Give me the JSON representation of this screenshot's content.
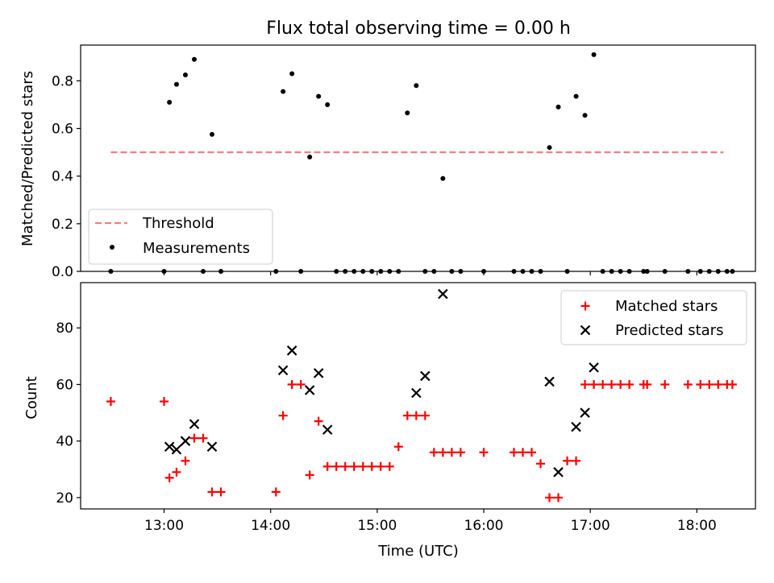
{
  "chart_data": [
    {
      "type": "scatter",
      "title": "Flux total observing time = 0.00 h",
      "xlabel": "",
      "ylabel": "Matched/Predicted stars",
      "ylim": [
        0,
        0.95
      ],
      "y_ticks": [
        "0.0",
        "0.2",
        "0.4",
        "0.6",
        "0.8"
      ],
      "legend_position": "lower-left",
      "threshold": {
        "name": "Threshold",
        "value": 0.5,
        "x_range": [
          "12:30",
          "18:15"
        ],
        "color": "#f08080",
        "style": "dashed"
      },
      "series": [
        {
          "name": "Measurements",
          "color": "#000000",
          "marker": "dot",
          "x": [
            "12:30",
            "13:00",
            "13:03",
            "13:07",
            "13:12",
            "13:17",
            "13:22",
            "13:27",
            "13:32",
            "14:03",
            "14:07",
            "14:12",
            "14:17",
            "14:22",
            "14:27",
            "14:32",
            "14:37",
            "14:42",
            "14:47",
            "14:52",
            "14:57",
            "15:02",
            "15:07",
            "15:12",
            "15:17",
            "15:22",
            "15:27",
            "15:32",
            "15:37",
            "15:42",
            "15:47",
            "16:00",
            "16:17",
            "16:22",
            "16:27",
            "16:32",
            "16:37",
            "16:42",
            "16:47",
            "16:52",
            "16:57",
            "17:02",
            "17:07",
            "17:12",
            "17:17",
            "17:22",
            "17:30",
            "17:32",
            "17:42",
            "17:55",
            "18:02",
            "18:07",
            "18:12",
            "18:17",
            "18:20"
          ],
          "y": [
            0,
            0,
            0.71,
            0.785,
            0.825,
            0.89,
            0,
            0.575,
            0,
            0,
            0.755,
            0.83,
            0,
            0.48,
            0.735,
            0.7,
            0,
            0,
            0,
            0,
            0,
            0,
            0,
            0,
            0.665,
            0.78,
            0,
            0,
            0.39,
            0,
            0,
            0,
            0,
            0,
            0,
            0,
            0.52,
            0.69,
            0,
            0.735,
            0.655,
            0.91,
            0,
            0,
            0,
            0,
            0,
            0,
            0,
            0,
            0,
            0,
            0,
            0,
            0
          ]
        }
      ]
    },
    {
      "type": "scatter",
      "title": "",
      "xlabel": "Time (UTC)",
      "ylabel": "Count",
      "ylim": [
        16,
        96
      ],
      "y_ticks": [
        "20",
        "40",
        "60",
        "80"
      ],
      "x_ticks": [
        "13:00",
        "14:00",
        "15:00",
        "16:00",
        "17:00",
        "18:00"
      ],
      "x_range": [
        "12:13",
        "18:33"
      ],
      "legend_position": "upper-right",
      "series": [
        {
          "name": "Matched stars",
          "color": "#ff0000",
          "marker": "plus",
          "x": [
            "12:30",
            "13:00",
            "13:03",
            "13:07",
            "13:12",
            "13:17",
            "13:22",
            "13:27",
            "13:32",
            "14:03",
            "14:07",
            "14:12",
            "14:17",
            "14:22",
            "14:27",
            "14:32",
            "14:37",
            "14:42",
            "14:47",
            "14:52",
            "14:57",
            "15:02",
            "15:07",
            "15:12",
            "15:17",
            "15:22",
            "15:27",
            "15:32",
            "15:37",
            "15:42",
            "15:47",
            "16:00",
            "16:17",
            "16:22",
            "16:27",
            "16:32",
            "16:37",
            "16:42",
            "16:47",
            "16:52",
            "16:57",
            "17:02",
            "17:07",
            "17:12",
            "17:17",
            "17:22",
            "17:30",
            "17:32",
            "17:42",
            "17:55",
            "18:02",
            "18:07",
            "18:12",
            "18:17",
            "18:20"
          ],
          "y": [
            54,
            54,
            27,
            29,
            33,
            41,
            41,
            22,
            22,
            22,
            49,
            60,
            60,
            28,
            47,
            31,
            31,
            31,
            31,
            31,
            31,
            31,
            31,
            38,
            49,
            49,
            49,
            36,
            36,
            36,
            36,
            36,
            36,
            36,
            36,
            32,
            20,
            20,
            33,
            33,
            60,
            60,
            60,
            60,
            60,
            60,
            60,
            60,
            60,
            60,
            60,
            60,
            60,
            60,
            60
          ]
        },
        {
          "name": "Predicted stars",
          "color": "#000000",
          "marker": "x",
          "x": [
            "13:03",
            "13:07",
            "13:12",
            "13:17",
            "13:27",
            "14:07",
            "14:12",
            "14:22",
            "14:27",
            "14:32",
            "15:22",
            "15:27",
            "15:37",
            "16:37",
            "16:42",
            "16:52",
            "16:57",
            "17:02"
          ],
          "y": [
            38,
            37,
            40,
            46,
            38,
            65,
            72,
            58,
            64,
            44,
            57,
            63,
            92,
            61,
            29,
            45,
            50,
            66
          ]
        }
      ]
    }
  ]
}
